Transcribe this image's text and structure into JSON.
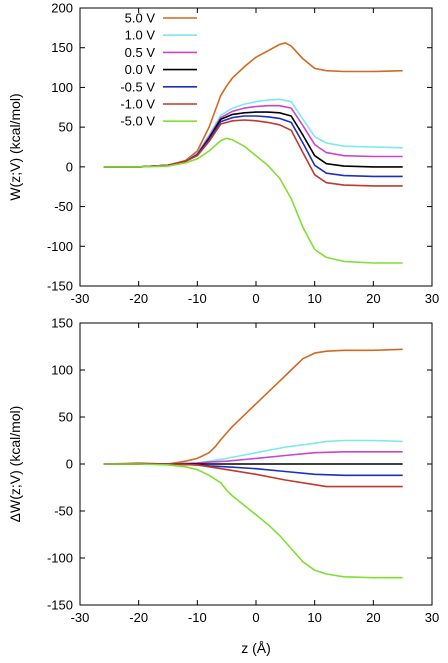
{
  "chart_data": [
    {
      "type": "line",
      "panel": "top",
      "ylabel": "W(z;V)  (kcal/mol)",
      "xlabel": "",
      "xlim": [
        -30,
        30
      ],
      "ylim": [
        -150,
        200
      ],
      "xticks": [
        "-30",
        "-20",
        "-10",
        "0",
        "10",
        "20",
        "30"
      ],
      "yticks": [
        "-150",
        "-100",
        "-50",
        "0",
        "50",
        "100",
        "150",
        "200"
      ],
      "legend_position": "top-left",
      "series": [
        {
          "name": "5.0 V",
          "color": "#d2691e",
          "x": [
            -26,
            -20,
            -15,
            -12,
            -10,
            -8,
            -6,
            -5,
            -4,
            -2,
            0,
            2,
            4,
            5,
            6,
            8,
            10,
            12,
            15,
            20,
            25
          ],
          "y": [
            0,
            0,
            2,
            8,
            20,
            50,
            90,
            102,
            112,
            126,
            138,
            146,
            154,
            156,
            152,
            136,
            124,
            121,
            120,
            120,
            121
          ]
        },
        {
          "name": "1.0 V",
          "color": "#7ee8f0",
          "x": [
            -26,
            -20,
            -15,
            -12,
            -10,
            -8,
            -6,
            -4,
            -2,
            0,
            2,
            4,
            6,
            8,
            10,
            12,
            15,
            20,
            25
          ],
          "y": [
            0,
            0,
            2,
            7,
            17,
            40,
            65,
            74,
            79,
            82,
            84,
            85,
            82,
            60,
            38,
            30,
            26,
            25,
            24
          ]
        },
        {
          "name": "0.5 V",
          "color": "#cc44cc",
          "x": [
            -26,
            -20,
            -15,
            -12,
            -10,
            -8,
            -6,
            -4,
            -2,
            0,
            2,
            4,
            6,
            8,
            10,
            12,
            15,
            20,
            25
          ],
          "y": [
            0,
            0,
            2,
            7,
            16,
            38,
            62,
            70,
            74,
            76,
            77,
            77,
            74,
            52,
            28,
            18,
            14,
            13,
            13
          ]
        },
        {
          "name": "0.0 V",
          "color": "#000000",
          "x": [
            -26,
            -20,
            -15,
            -12,
            -10,
            -8,
            -6,
            -4,
            -2,
            0,
            2,
            4,
            6,
            8,
            10,
            12,
            15,
            20,
            25
          ],
          "y": [
            0,
            0,
            2,
            7,
            15,
            36,
            60,
            66,
            68,
            69,
            69,
            68,
            64,
            40,
            14,
            4,
            1,
            0,
            0
          ]
        },
        {
          "name": "-0.5 V",
          "color": "#1c2fbf",
          "x": [
            -26,
            -20,
            -15,
            -12,
            -10,
            -8,
            -6,
            -4,
            -2,
            0,
            2,
            4,
            6,
            8,
            10,
            12,
            15,
            20,
            25
          ],
          "y": [
            0,
            0,
            2,
            7,
            15,
            34,
            57,
            62,
            64,
            64,
            63,
            61,
            56,
            30,
            2,
            -8,
            -11,
            -12,
            -12
          ]
        },
        {
          "name": "-1.0 V",
          "color": "#c0392b",
          "x": [
            -26,
            -20,
            -15,
            -12,
            -10,
            -8,
            -6,
            -4,
            -2,
            0,
            2,
            4,
            6,
            8,
            10,
            12,
            15,
            20,
            25
          ],
          "y": [
            0,
            0,
            2,
            7,
            14,
            32,
            54,
            58,
            59,
            58,
            56,
            53,
            46,
            18,
            -10,
            -20,
            -23,
            -24,
            -24
          ]
        },
        {
          "name": "-5.0 V",
          "color": "#7fe033",
          "x": [
            -26,
            -20,
            -15,
            -12,
            -10,
            -8,
            -6,
            -5,
            -4,
            -2,
            0,
            2,
            4,
            6,
            8,
            10,
            12,
            15,
            20,
            25
          ],
          "y": [
            0,
            0,
            1,
            5,
            10,
            20,
            33,
            36,
            34,
            26,
            14,
            2,
            -14,
            -40,
            -76,
            -104,
            -114,
            -119,
            -121,
            -121
          ]
        }
      ]
    },
    {
      "type": "line",
      "panel": "bottom",
      "ylabel": "ΔW(z;V)  (kcal/mol)",
      "xlabel": "z (Å)",
      "xlim": [
        -30,
        30
      ],
      "ylim": [
        -150,
        150
      ],
      "xticks": [
        "-30",
        "-20",
        "-10",
        "0",
        "10",
        "20",
        "30"
      ],
      "yticks": [
        "-150",
        "-100",
        "-50",
        "0",
        "50",
        "100",
        "150"
      ],
      "series": [
        {
          "name": "5.0 V",
          "color": "#d2691e",
          "x": [
            -26,
            -20,
            -15,
            -12,
            -10,
            -8,
            -7,
            -6,
            -4,
            -2,
            0,
            2,
            4,
            6,
            8,
            10,
            12,
            15,
            20,
            25
          ],
          "y": [
            0,
            1,
            0,
            3,
            6,
            12,
            18,
            26,
            40,
            52,
            64,
            76,
            88,
            100,
            112,
            118,
            120,
            121,
            121,
            122
          ]
        },
        {
          "name": "1.0 V",
          "color": "#7ee8f0",
          "x": [
            -26,
            -20,
            -15,
            -10,
            -8,
            -5,
            0,
            5,
            10,
            12,
            15,
            20,
            25
          ],
          "y": [
            0,
            0,
            0,
            1,
            3,
            6,
            12,
            18,
            22,
            24,
            25,
            25,
            24
          ]
        },
        {
          "name": "0.5 V",
          "color": "#cc44cc",
          "x": [
            -26,
            -20,
            -15,
            -10,
            -8,
            -5,
            0,
            5,
            10,
            15,
            20,
            25
          ],
          "y": [
            0,
            0,
            0,
            1,
            2,
            3,
            6,
            9,
            12,
            13,
            13,
            13
          ]
        },
        {
          "name": "0.0 V",
          "color": "#000000",
          "x": [
            -26,
            -20,
            -10,
            0,
            10,
            20,
            25
          ],
          "y": [
            0,
            0,
            0,
            0,
            0,
            0,
            0
          ]
        },
        {
          "name": "-0.5 V",
          "color": "#1c2fbf",
          "x": [
            -26,
            -20,
            -15,
            -10,
            -8,
            -5,
            0,
            5,
            10,
            15,
            20,
            25
          ],
          "y": [
            0,
            0,
            0,
            -1,
            -2,
            -3,
            -5,
            -8,
            -11,
            -12,
            -12,
            -12
          ]
        },
        {
          "name": "-1.0 V",
          "color": "#c0392b",
          "x": [
            -26,
            -20,
            -15,
            -10,
            -8,
            -5,
            0,
            5,
            10,
            12,
            15,
            20,
            25
          ],
          "y": [
            0,
            0,
            0,
            -1,
            -3,
            -6,
            -11,
            -17,
            -22,
            -24,
            -24,
            -24,
            -24
          ]
        },
        {
          "name": "-5.0 V",
          "color": "#7fe033",
          "x": [
            -26,
            -20,
            -15,
            -12,
            -10,
            -8,
            -6,
            -5,
            -4,
            -2,
            0,
            2,
            4,
            6,
            8,
            10,
            12,
            15,
            20,
            25
          ],
          "y": [
            0,
            0,
            -1,
            -3,
            -6,
            -12,
            -20,
            -28,
            -34,
            -44,
            -54,
            -64,
            -76,
            -90,
            -104,
            -113,
            -117,
            -120,
            -121,
            -121
          ]
        }
      ]
    }
  ]
}
